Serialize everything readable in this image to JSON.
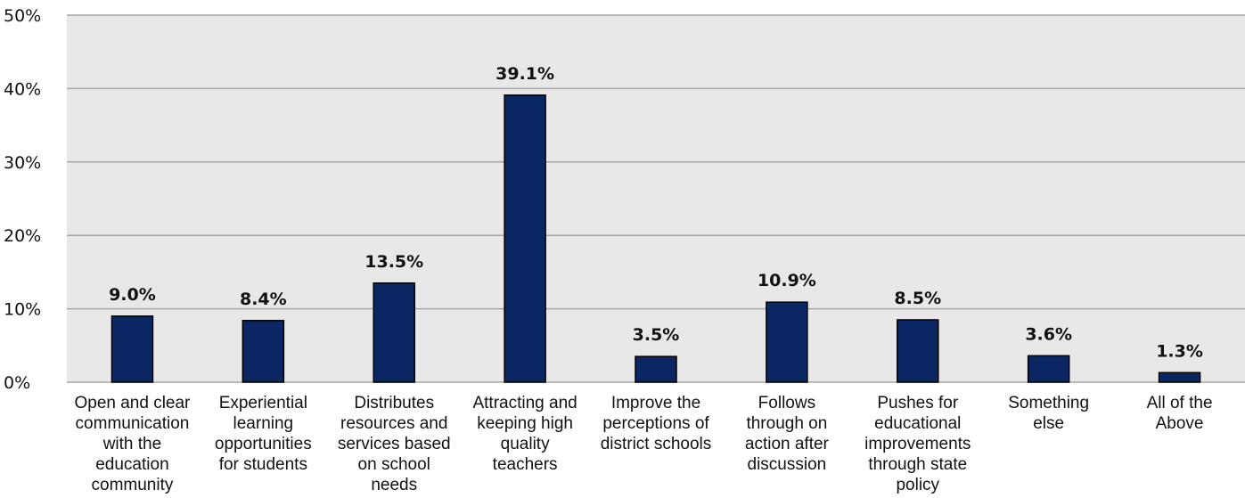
{
  "chart_data": {
    "type": "bar",
    "categories": [
      "Open and clear communication with the education community",
      "Experiential learning opportunities for students",
      "Distributes resources and services based on school needs",
      "Attracting and keeping high quality teachers",
      "Improve the perceptions of district schools",
      "Follows through on action after discussion",
      "Pushes for educational improvements through state policy",
      "Something else",
      "All of the Above"
    ],
    "category_lines": [
      [
        "Open and clear",
        "communication",
        "with the",
        "education",
        "community"
      ],
      [
        "Experiential",
        "learning",
        "opportunities",
        "for students"
      ],
      [
        "Distributes",
        "resources and",
        "services based",
        "on school",
        "needs"
      ],
      [
        "Attracting and",
        "keeping high",
        "quality",
        "teachers"
      ],
      [
        "Improve the",
        "perceptions of",
        "district schools"
      ],
      [
        "Follows",
        "through on",
        "action after",
        "discussion"
      ],
      [
        "Pushes for",
        "educational",
        "improvements",
        "through state",
        "policy"
      ],
      [
        "Something",
        "else"
      ],
      [
        "All of the",
        "Above"
      ]
    ],
    "values": [
      9.0,
      8.4,
      13.5,
      39.1,
      3.5,
      10.9,
      8.5,
      3.6,
      1.3
    ],
    "data_labels": [
      "9.0%",
      "8.4%",
      "13.5%",
      "39.1%",
      "3.5%",
      "10.9%",
      "8.5%",
      "3.6%",
      "1.3%"
    ],
    "yticks": [
      0,
      10,
      20,
      30,
      40,
      50
    ],
    "ytick_labels": [
      "0%",
      "10%",
      "20%",
      "30%",
      "40%",
      "50%"
    ],
    "ylim": [
      0,
      50
    ],
    "grid": true,
    "legend": "none",
    "colors": {
      "bar": "#0b2763",
      "bar_outline": "#000000",
      "plot_background": "#e8e8e8",
      "gridline": "#a6a6a6"
    }
  }
}
